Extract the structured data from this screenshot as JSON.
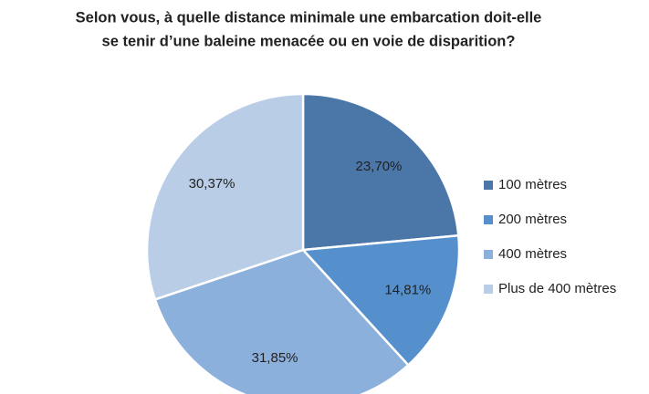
{
  "chart_data": {
    "type": "pie",
    "title": [
      "Selon vous, à quelle distance minimale une embarcation doit-elle",
      "se tenir d’une baleine menacée ou en voie de disparition?"
    ],
    "categories": [
      "100 mètres",
      "200 mètres",
      "400 mètres",
      "Plus de 400 mètres"
    ],
    "values": [
      23.7,
      14.81,
      31.85,
      30.37
    ],
    "value_labels": [
      "23,70%",
      "14,81%",
      "31,85%",
      "30,37%"
    ],
    "colors": [
      "#4a76a8",
      "#5590cc",
      "#8cb0dc",
      "#b9cde7"
    ],
    "legend": "right"
  }
}
